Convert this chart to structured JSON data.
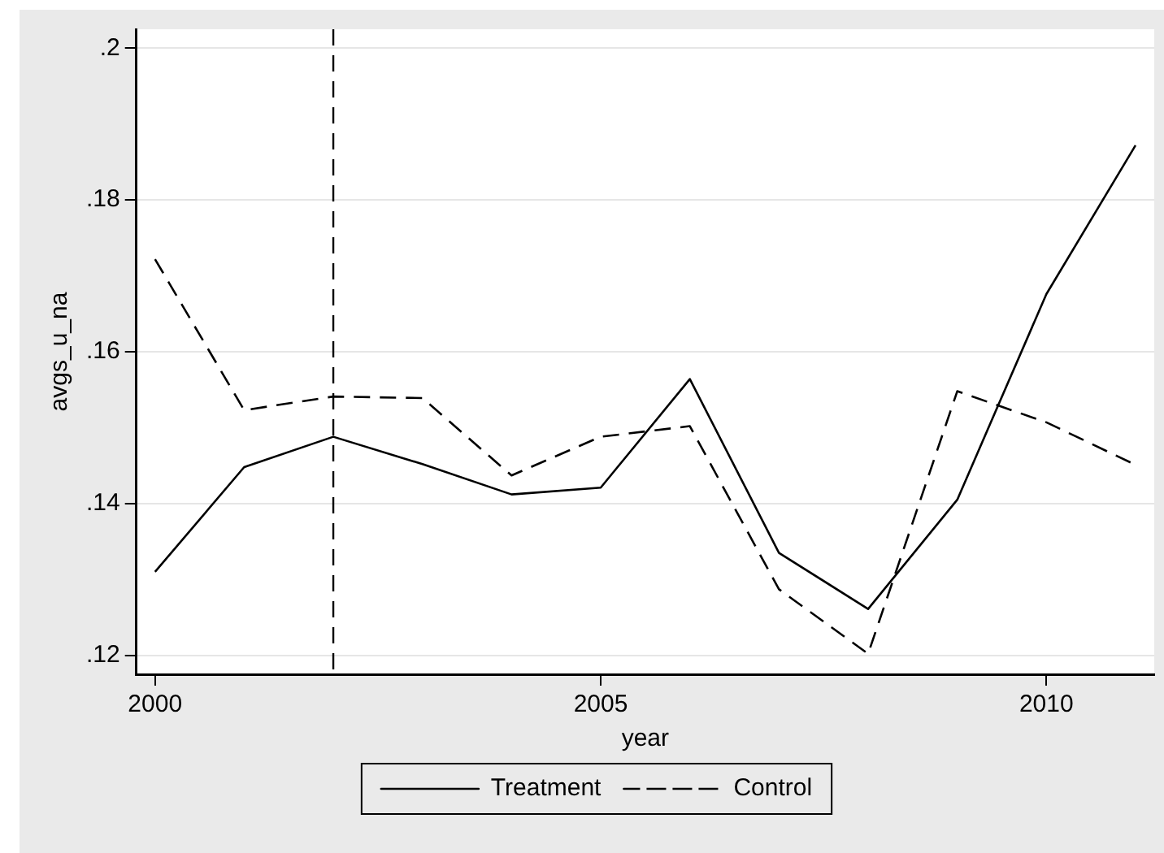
{
  "chart_data": {
    "type": "line",
    "xlabel": "year",
    "ylabel": "avgs_u_na",
    "x": [
      2000,
      2001,
      2002,
      2003,
      2004,
      2005,
      2006,
      2007,
      2008,
      2009,
      2010,
      2011
    ],
    "series": [
      {
        "name": "Treatment",
        "color": "#000000",
        "line_style": "solid",
        "values": [
          0.131,
          0.1448,
          0.1488,
          0.1452,
          0.1412,
          0.1421,
          0.1564,
          0.1335,
          0.1261,
          0.1405,
          0.1676,
          0.1872
        ]
      },
      {
        "name": "Control",
        "color": "#000000",
        "line_style": "dashed",
        "values": [
          0.1722,
          0.1523,
          0.1541,
          0.1539,
          0.1437,
          0.1488,
          0.1502,
          0.1287,
          0.1202,
          0.1548,
          0.1507,
          0.1451
        ]
      }
    ],
    "xlim": [
      1999.79,
      2011.21
    ],
    "xticks": [
      2000,
      2005,
      2010
    ],
    "ylim": [
      0.1175,
      0.2025
    ],
    "yticks": [
      {
        "value": 0.12,
        "label": ".12"
      },
      {
        "value": 0.14,
        "label": ".14"
      },
      {
        "value": 0.16,
        "label": ".16"
      },
      {
        "value": 0.18,
        "label": ".18"
      },
      {
        "value": 0.2,
        "label": ".2"
      }
    ],
    "ref_lines": [
      {
        "axis": "x",
        "value": 2002,
        "color": "#000000",
        "line_style": "dashed"
      }
    ],
    "grid": "y",
    "legend": "bottom",
    "marker": "none"
  }
}
